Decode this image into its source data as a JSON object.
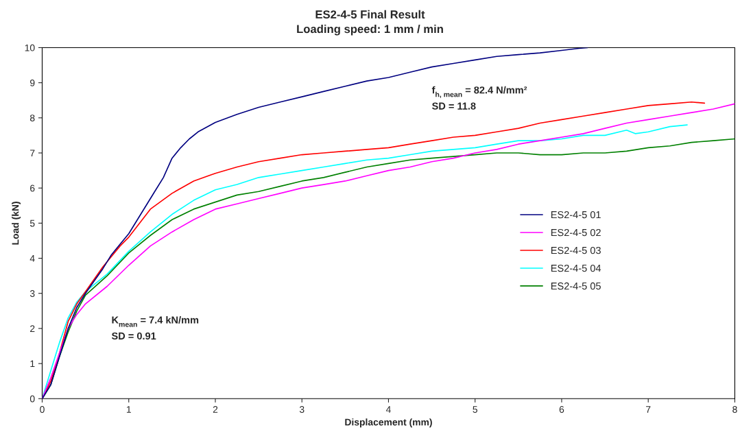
{
  "chart_data": {
    "type": "line",
    "title": "ES2-4-5 Final Result",
    "subtitle": "Loading speed: 1 mm / min",
    "xlabel": "Displacement (mm)",
    "ylabel": "Load (kN)",
    "xlim": [
      0,
      8
    ],
    "xticks": [
      0,
      1,
      2,
      3,
      4,
      5,
      6,
      7,
      8
    ],
    "ylim": [
      0,
      10
    ],
    "yticks": [
      0,
      1,
      2,
      3,
      4,
      5,
      6,
      7,
      8,
      9,
      10
    ],
    "grid": false,
    "legend": "right",
    "marker": "none",
    "line_style": "solid",
    "annotations": [
      "f$_{h, mean}$ = 82.4 N/mm²\nSD = 11.8",
      "K$_{mean}$ = 7.4 kN/mm\nSD = 0.91"
    ],
    "series": [
      {
        "name": "ES2-4-5 01",
        "color": "#000080",
        "x": [
          0,
          0.1,
          0.2,
          0.3,
          0.4,
          0.5,
          0.6,
          0.7,
          0.8,
          0.9,
          1.0,
          1.1,
          1.2,
          1.3,
          1.4,
          1.5,
          1.6,
          1.7,
          1.8,
          2.0,
          2.25,
          2.5,
          2.75,
          3.0,
          3.25,
          3.5,
          3.75,
          4.0,
          4.25,
          4.5,
          4.75,
          5.0,
          5.25,
          5.5,
          5.75,
          6.0,
          6.2,
          6.3
        ],
        "values": [
          0,
          0.4,
          1.2,
          2.0,
          2.6,
          3.0,
          3.35,
          3.7,
          4.1,
          4.4,
          4.7,
          5.1,
          5.5,
          5.9,
          6.3,
          6.85,
          7.15,
          7.4,
          7.6,
          7.87,
          8.1,
          8.3,
          8.45,
          8.6,
          8.75,
          8.9,
          9.05,
          9.15,
          9.3,
          9.45,
          9.55,
          9.65,
          9.75,
          9.8,
          9.85,
          9.92,
          9.98,
          10.0
        ]
      },
      {
        "name": "ES2-4-5 02",
        "color": "#ff00ff",
        "x": [
          0,
          0.1,
          0.2,
          0.3,
          0.4,
          0.5,
          0.75,
          1.0,
          1.25,
          1.5,
          1.75,
          2.0,
          2.25,
          2.5,
          2.75,
          3.0,
          3.25,
          3.5,
          3.75,
          4.0,
          4.25,
          4.5,
          4.75,
          5.0,
          5.25,
          5.5,
          5.75,
          6.0,
          6.25,
          6.5,
          6.75,
          7.0,
          7.25,
          7.5,
          7.75,
          8.0
        ],
        "values": [
          0,
          0.6,
          1.3,
          2.0,
          2.4,
          2.7,
          3.2,
          3.8,
          4.35,
          4.75,
          5.1,
          5.4,
          5.55,
          5.7,
          5.85,
          6.0,
          6.1,
          6.2,
          6.35,
          6.5,
          6.6,
          6.75,
          6.85,
          7.0,
          7.1,
          7.25,
          7.35,
          7.45,
          7.55,
          7.7,
          7.85,
          7.95,
          8.05,
          8.15,
          8.25,
          8.4
        ]
      },
      {
        "name": "ES2-4-5 03",
        "color": "#ff0000",
        "x": [
          0,
          0.1,
          0.2,
          0.3,
          0.4,
          0.5,
          0.6,
          0.7,
          0.8,
          0.9,
          1.0,
          1.25,
          1.5,
          1.75,
          2.0,
          2.25,
          2.5,
          2.75,
          3.0,
          3.25,
          3.5,
          3.75,
          4.0,
          4.25,
          4.5,
          4.75,
          5.0,
          5.25,
          5.5,
          5.75,
          6.0,
          6.25,
          6.5,
          6.75,
          7.0,
          7.25,
          7.5,
          7.65
        ],
        "values": [
          0,
          0.5,
          1.3,
          2.2,
          2.7,
          3.05,
          3.4,
          3.75,
          4.05,
          4.35,
          4.6,
          5.4,
          5.85,
          6.2,
          6.42,
          6.6,
          6.75,
          6.85,
          6.95,
          7.0,
          7.05,
          7.1,
          7.15,
          7.25,
          7.35,
          7.45,
          7.5,
          7.6,
          7.7,
          7.85,
          7.95,
          8.05,
          8.15,
          8.25,
          8.35,
          8.4,
          8.45,
          8.42
        ]
      },
      {
        "name": "ES2-4-5 04",
        "color": "#00ffff",
        "x": [
          0,
          0.1,
          0.2,
          0.3,
          0.4,
          0.5,
          0.75,
          1.0,
          1.25,
          1.5,
          1.75,
          2.0,
          2.25,
          2.5,
          2.75,
          3.0,
          3.25,
          3.5,
          3.75,
          4.0,
          4.25,
          4.5,
          4.75,
          5.0,
          5.25,
          5.5,
          5.75,
          6.0,
          6.25,
          6.5,
          6.75,
          6.85,
          7.0,
          7.25,
          7.45
        ],
        "values": [
          0,
          0.8,
          1.6,
          2.3,
          2.75,
          3.05,
          3.55,
          4.2,
          4.75,
          5.25,
          5.65,
          5.95,
          6.1,
          6.3,
          6.4,
          6.5,
          6.6,
          6.7,
          6.8,
          6.85,
          6.95,
          7.05,
          7.1,
          7.15,
          7.25,
          7.35,
          7.35,
          7.4,
          7.5,
          7.5,
          7.65,
          7.55,
          7.6,
          7.75,
          7.8
        ]
      },
      {
        "name": "ES2-4-5 05",
        "color": "#008000",
        "x": [
          0,
          0.1,
          0.2,
          0.3,
          0.4,
          0.5,
          0.75,
          1.0,
          1.25,
          1.5,
          1.75,
          2.0,
          2.25,
          2.5,
          2.75,
          3.0,
          3.25,
          3.5,
          3.75,
          4.0,
          4.25,
          4.5,
          4.75,
          5.0,
          5.25,
          5.5,
          5.75,
          6.0,
          6.25,
          6.5,
          6.75,
          7.0,
          7.25,
          7.5,
          7.75,
          8.0
        ],
        "values": [
          0,
          0.4,
          1.2,
          1.9,
          2.5,
          2.95,
          3.5,
          4.15,
          4.65,
          5.1,
          5.4,
          5.6,
          5.8,
          5.9,
          6.05,
          6.2,
          6.3,
          6.45,
          6.6,
          6.7,
          6.8,
          6.85,
          6.9,
          6.95,
          7.0,
          7.0,
          6.95,
          6.95,
          7.0,
          7.0,
          7.05,
          7.15,
          7.2,
          7.3,
          7.35,
          7.4
        ]
      }
    ]
  }
}
